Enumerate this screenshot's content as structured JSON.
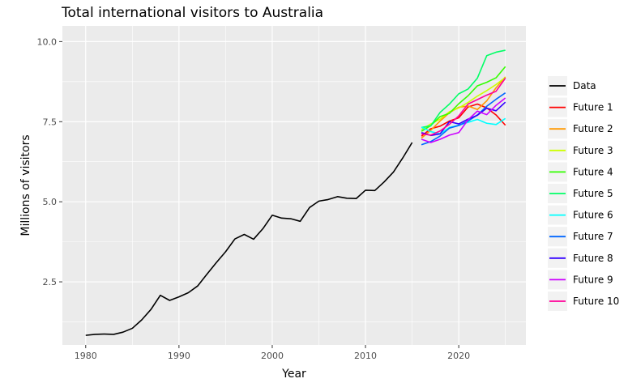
{
  "chart_data": {
    "type": "line",
    "title": "Total international visitors to Australia",
    "xlabel": "Year",
    "ylabel": "Millions of visitors",
    "xlim": [
      1977.5,
      2027.2
    ],
    "ylim": [
      0.53,
      10.49
    ],
    "x_ticks": [
      1980,
      1990,
      2000,
      2010,
      2020
    ],
    "x_tick_labels": [
      "1980",
      "1990",
      "2000",
      "2010",
      "2020"
    ],
    "y_ticks": [
      2.5,
      5.0,
      7.5,
      10.0
    ],
    "y_tick_labels": [
      "2.5",
      "5.0",
      "7.5",
      "10.0"
    ],
    "grid": true,
    "legend_position": "right",
    "series": [
      {
        "name": "Data",
        "color": "#000000",
        "x": [
          1980,
          1981,
          1982,
          1983,
          1984,
          1985,
          1986,
          1987,
          1988,
          1989,
          1990,
          1991,
          1992,
          1993,
          1994,
          1995,
          1996,
          1997,
          1998,
          1999,
          2000,
          2001,
          2002,
          2003,
          2004,
          2005,
          2006,
          2007,
          2008,
          2009,
          2010,
          2011,
          2012,
          2013,
          2014,
          2015
        ],
        "y": [
          0.83,
          0.86,
          0.87,
          0.86,
          0.93,
          1.05,
          1.31,
          1.64,
          2.08,
          1.92,
          2.03,
          2.16,
          2.37,
          2.74,
          3.1,
          3.44,
          3.84,
          3.98,
          3.83,
          4.16,
          4.58,
          4.49,
          4.47,
          4.39,
          4.82,
          5.02,
          5.07,
          5.16,
          5.11,
          5.1,
          5.36,
          5.35,
          5.62,
          5.93,
          6.37,
          6.85
        ]
      },
      {
        "name": "Future 1",
        "color": "#ff0000",
        "x": [
          2016,
          2017,
          2018,
          2019,
          2020,
          2021,
          2022,
          2023,
          2024,
          2025
        ],
        "y": [
          7.05,
          7.28,
          7.36,
          7.52,
          7.62,
          7.96,
          8.05,
          7.93,
          7.71,
          7.39
        ]
      },
      {
        "name": "Future 2",
        "color": "#ff9900",
        "x": [
          2016,
          2017,
          2018,
          2019,
          2020,
          2021,
          2022,
          2023,
          2024,
          2025
        ],
        "y": [
          6.99,
          7.23,
          7.52,
          7.78,
          7.95,
          7.99,
          7.88,
          8.15,
          8.56,
          8.9
        ]
      },
      {
        "name": "Future 3",
        "color": "#ccff00",
        "x": [
          2016,
          2017,
          2018,
          2019,
          2020,
          2021,
          2022,
          2023,
          2024,
          2025
        ],
        "y": [
          7.25,
          7.43,
          7.58,
          7.81,
          7.93,
          8.1,
          8.3,
          8.47,
          8.66,
          8.88
        ]
      },
      {
        "name": "Future 4",
        "color": "#33ff00",
        "x": [
          2016,
          2017,
          2018,
          2019,
          2020,
          2021,
          2022,
          2023,
          2024,
          2025
        ],
        "y": [
          7.2,
          7.38,
          7.66,
          7.76,
          8.06,
          8.31,
          8.62,
          8.73,
          8.87,
          9.22
        ]
      },
      {
        "name": "Future 5",
        "color": "#00ff66",
        "x": [
          2016,
          2017,
          2018,
          2019,
          2020,
          2021,
          2022,
          2023,
          2024,
          2025
        ],
        "y": [
          7.32,
          7.37,
          7.79,
          8.05,
          8.37,
          8.52,
          8.86,
          9.56,
          9.67,
          9.73
        ]
      },
      {
        "name": "Future 6",
        "color": "#00ffff",
        "x": [
          2016,
          2017,
          2018,
          2019,
          2020,
          2021,
          2022,
          2023,
          2024,
          2025
        ],
        "y": [
          7.33,
          7.19,
          7.12,
          7.32,
          7.39,
          7.48,
          7.57,
          7.45,
          7.41,
          7.6
        ]
      },
      {
        "name": "Future 7",
        "color": "#0066ff",
        "x": [
          2016,
          2017,
          2018,
          2019,
          2020,
          2021,
          2022,
          2023,
          2024,
          2025
        ],
        "y": [
          6.78,
          6.88,
          7.05,
          7.3,
          7.38,
          7.52,
          7.71,
          7.98,
          8.2,
          8.4
        ]
      },
      {
        "name": "Future 8",
        "color": "#3300ff",
        "x": [
          2016,
          2017,
          2018,
          2019,
          2020,
          2021,
          2022,
          2023,
          2024,
          2025
        ],
        "y": [
          7.16,
          7.07,
          7.12,
          7.5,
          7.43,
          7.58,
          7.7,
          7.92,
          7.84,
          8.11
        ]
      },
      {
        "name": "Future 9",
        "color": "#cc00ff",
        "x": [
          2016,
          2017,
          2018,
          2019,
          2020,
          2021,
          2022,
          2023,
          2024,
          2025
        ],
        "y": [
          6.95,
          6.85,
          6.95,
          7.08,
          7.16,
          7.56,
          7.83,
          7.72,
          8.01,
          8.24
        ]
      },
      {
        "name": "Future 10",
        "color": "#ff0099",
        "x": [
          2016,
          2017,
          2018,
          2019,
          2020,
          2021,
          2022,
          2023,
          2024,
          2025
        ],
        "y": [
          7.12,
          7.08,
          7.21,
          7.42,
          7.68,
          8.05,
          8.19,
          8.33,
          8.45,
          8.86
        ]
      }
    ]
  }
}
